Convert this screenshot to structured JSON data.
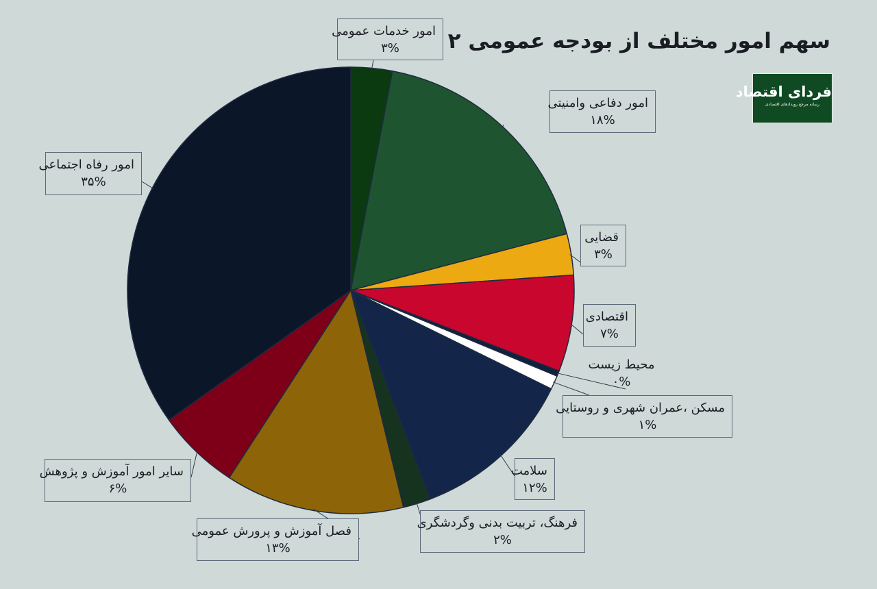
{
  "title": "سهم امور مختلف از بودجه عمومی ۱۴۰۲",
  "logo": {
    "name": "فردای اقتصاد",
    "tagline": "رسانه مرجع رویدادهای اقتصادی"
  },
  "watermark": "فردا",
  "colors": {
    "background": "#ced9d8",
    "logo_bg": "#0f4a22",
    "slice_border": "#1e2a40"
  },
  "chart_data": {
    "type": "pie",
    "title": "سهم امور مختلف از بودجه عمومی ۱۴۰۲",
    "slices": [
      {
        "name": "امور خدمات عمومی",
        "value": 3,
        "value_label": "۳%",
        "color": "#0b3a10"
      },
      {
        "name": "امور دفاعی وامنیتی",
        "value": 18,
        "value_label": "۱۸%",
        "color": "#1e5530"
      },
      {
        "name": "قضایی",
        "value": 3,
        "value_label": "۳%",
        "color": "#eca912"
      },
      {
        "name": "اقتصادی",
        "value": 7,
        "value_label": "۷%",
        "color": "#c8062e"
      },
      {
        "name": "محیط زیست",
        "value": 0.4,
        "value_label": "۰%",
        "color": "#10213d"
      },
      {
        "name": "مسکن ،عمران شهری و روستایی",
        "value": 1,
        "value_label": "۱%",
        "color": "#ffffff"
      },
      {
        "name": "سلامت",
        "value": 12,
        "value_label": "۱۲%",
        "color": "#13264a"
      },
      {
        "name": "فرهنگ، تربیت بدنی وگردشگری",
        "value": 2,
        "value_label": "۲%",
        "color": "#15331f"
      },
      {
        "name": "فصل آموزش و پرورش عمومی",
        "value": 13,
        "value_label": "۱۳%",
        "color": "#8e6409"
      },
      {
        "name": "سایر امور آموزش و پژوهش",
        "value": 6,
        "value_label": "۶%",
        "color": "#7d0018"
      },
      {
        "name": "امور رفاه اجتماعی",
        "value": 35,
        "value_label": "۳۵%",
        "color": "#0c1629"
      }
    ]
  }
}
